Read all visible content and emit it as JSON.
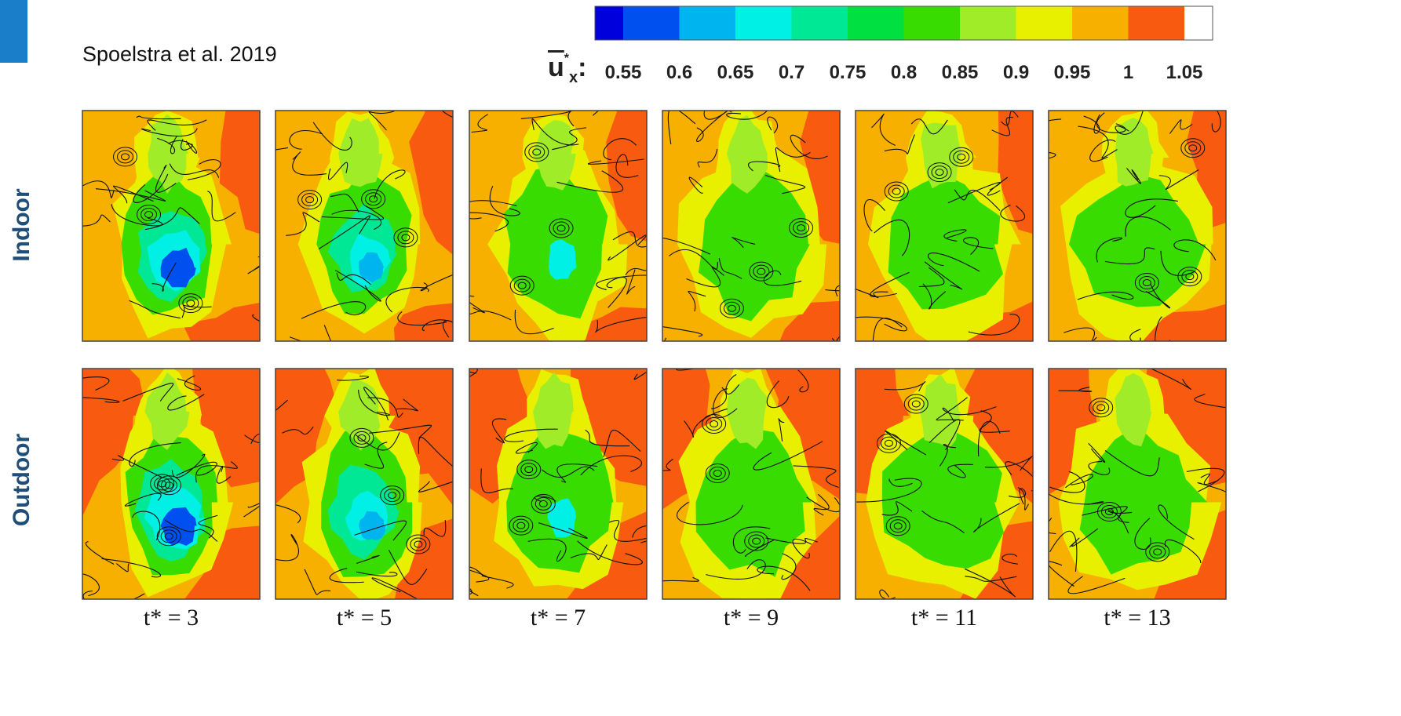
{
  "citation": "Spoelstra et al. 2019",
  "colorbar": {
    "symbol": "u",
    "superscript": "*",
    "subscript": "x",
    "suffix": ":",
    "colors": [
      "#0000dc",
      "#0050f0",
      "#00b4f0",
      "#00f0e6",
      "#00e896",
      "#00e040",
      "#38dc00",
      "#a0ec28",
      "#e8f000",
      "#f8b000",
      "#f85a10",
      "#ffffff"
    ],
    "ticks": [
      "0.55",
      "0.6",
      "0.65",
      "0.7",
      "0.75",
      "0.8",
      "0.85",
      "0.9",
      "0.95",
      "1",
      "1.05"
    ]
  },
  "rows": [
    "Indoor",
    "Outdoor"
  ],
  "times": [
    "t* = 3",
    "t* = 5",
    "t* = 7",
    "t* = 9",
    "t* = 11",
    "t* = 13"
  ]
}
